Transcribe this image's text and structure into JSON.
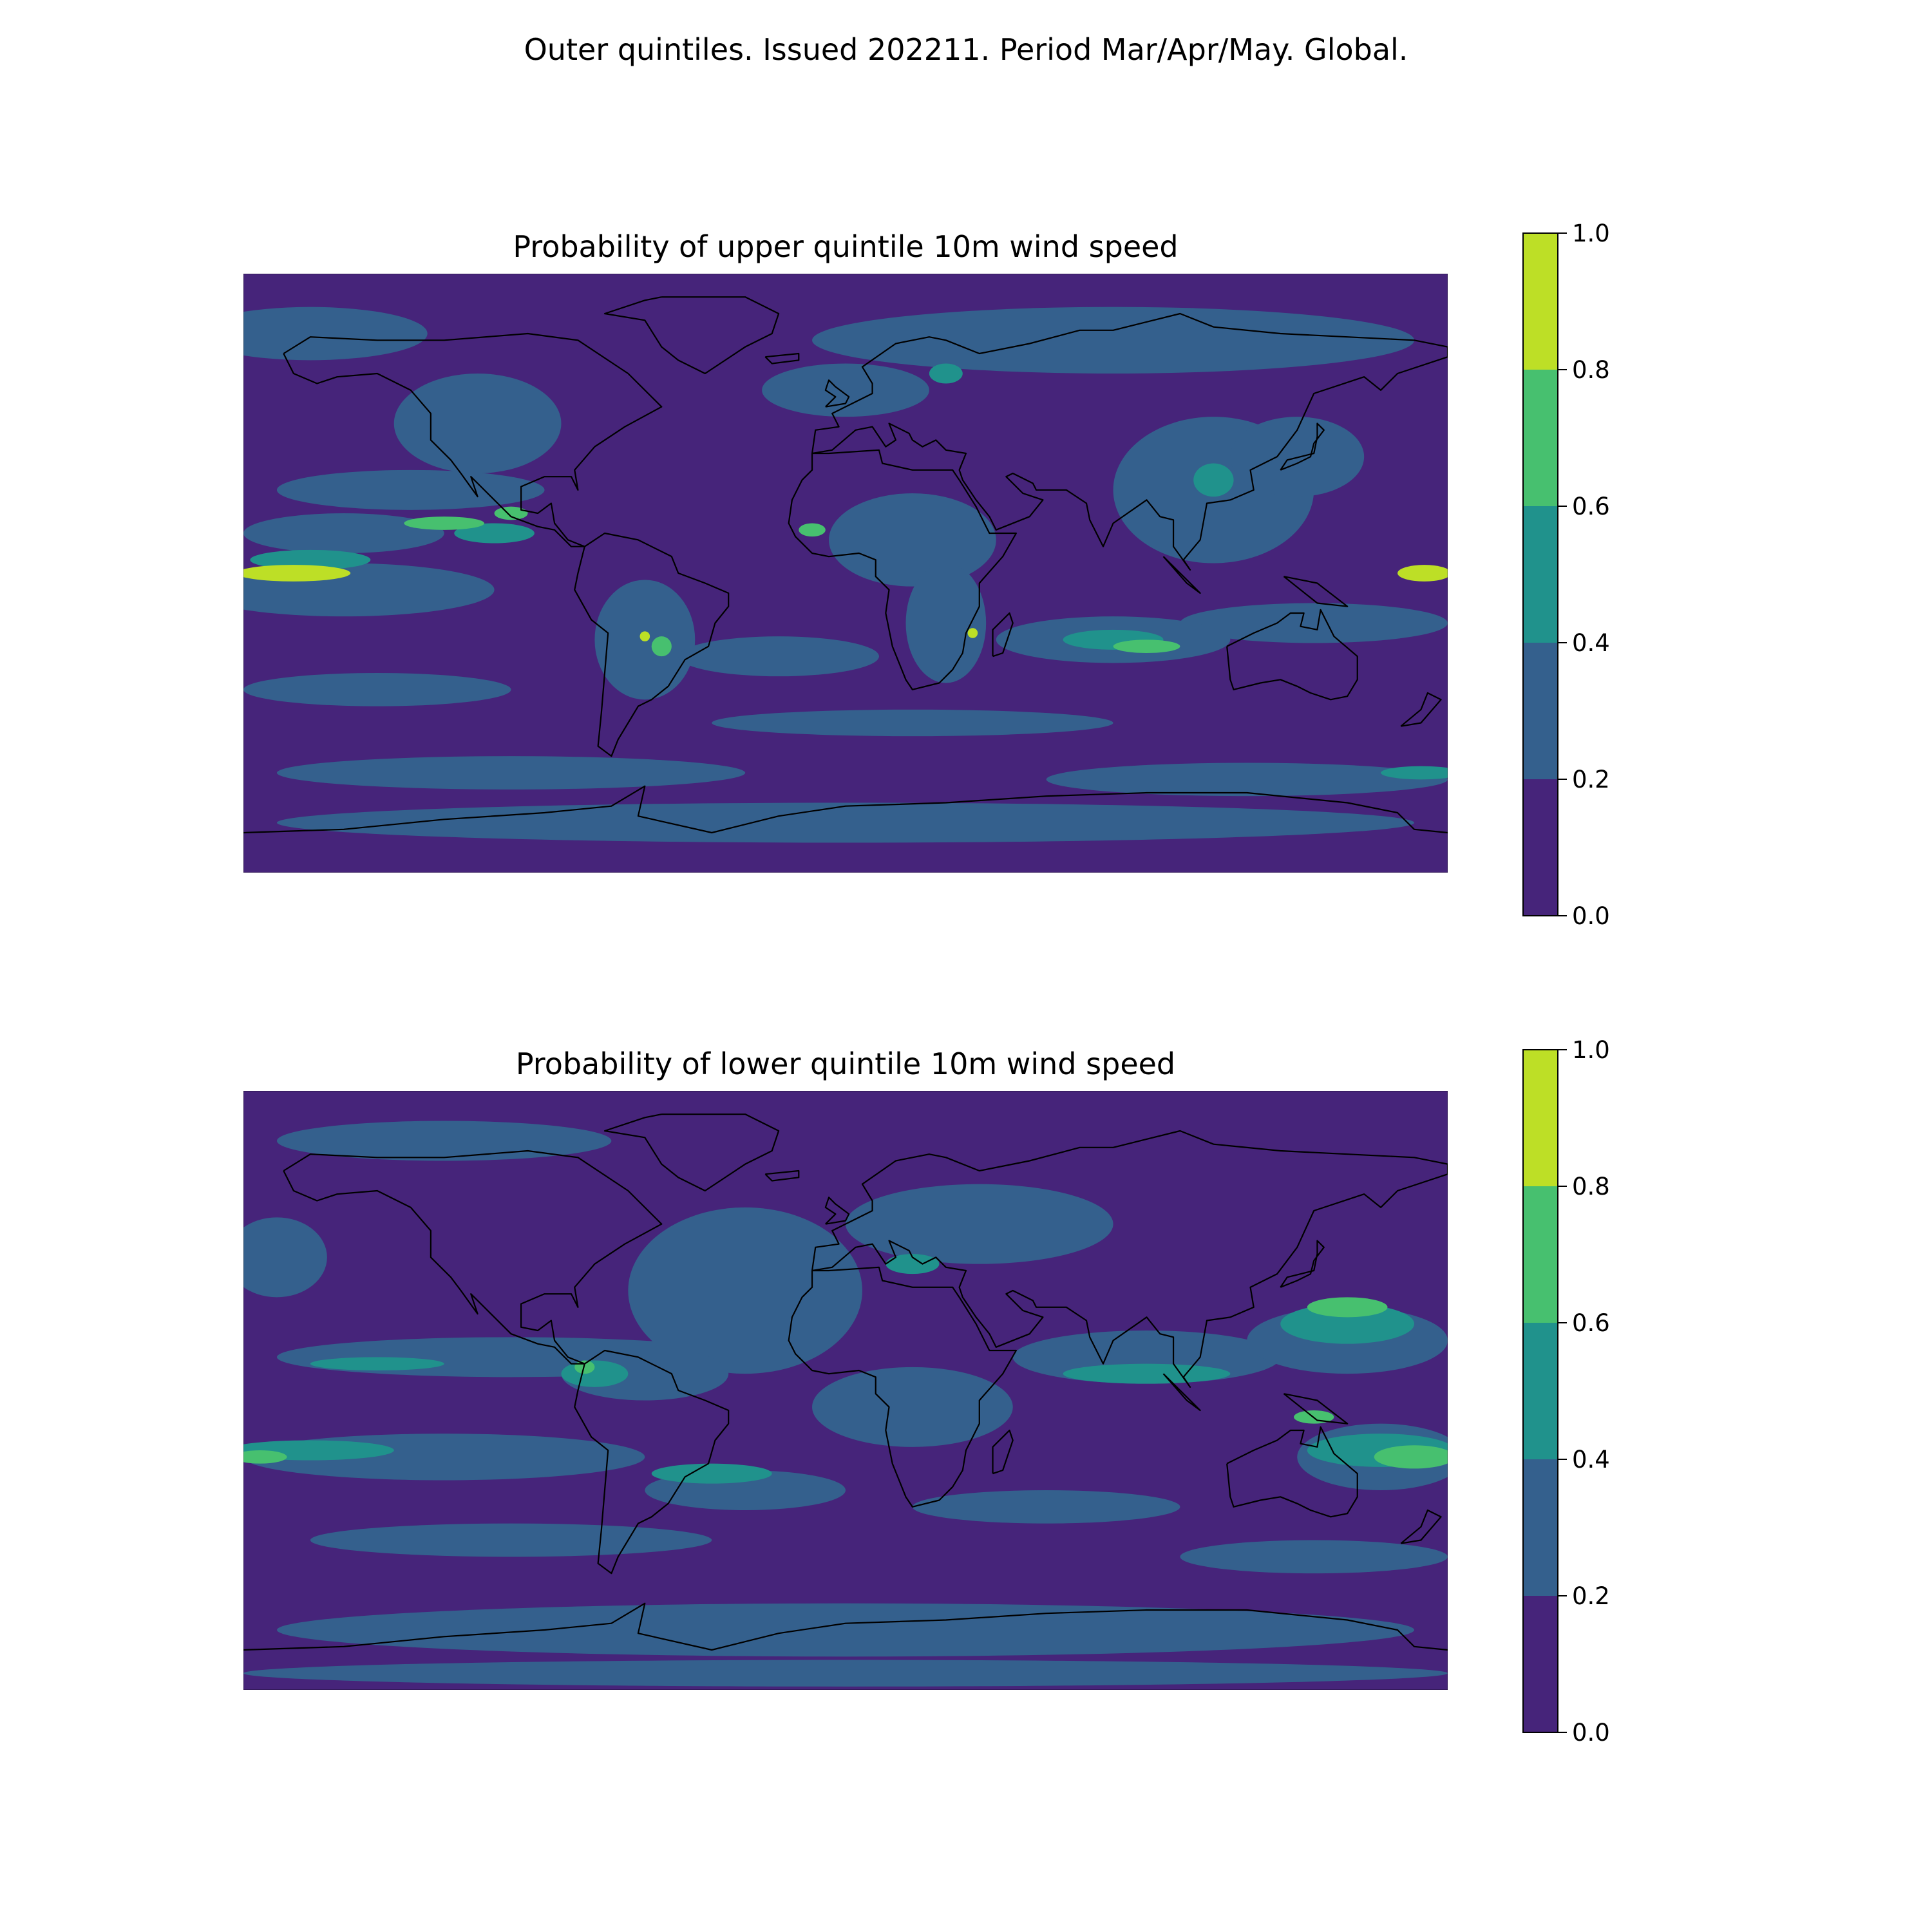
{
  "figure": {
    "suptitle": "Outer quintiles. Issued 202211. Period Mar/Apr/May. Global."
  },
  "colormap": {
    "levels": [
      0.0,
      0.2,
      0.4,
      0.6,
      0.8,
      1.0
    ],
    "colors": [
      "#46247a",
      "#34608d",
      "#20928c",
      "#47c06f",
      "#bddf26"
    ]
  },
  "colorbar": {
    "tick_values": [
      0.0,
      0.2,
      0.4,
      0.6,
      0.8,
      1.0
    ],
    "tick_labels": [
      "0.0",
      "0.2",
      "0.4",
      "0.6",
      "0.8",
      "1.0"
    ]
  },
  "panels": [
    {
      "title": "Probability of upper quintile 10m wind speed",
      "background_class": 0,
      "features": [
        {
          "class": 1,
          "lon": -160,
          "lat": 72,
          "rlon": 35,
          "rlat": 8
        },
        {
          "class": 1,
          "lon": 80,
          "lat": 70,
          "rlon": 90,
          "rlat": 10
        },
        {
          "class": 1,
          "lon": -110,
          "lat": 45,
          "rlon": 25,
          "rlat": 15
        },
        {
          "class": 1,
          "lon": 0,
          "lat": 55,
          "rlon": 25,
          "rlat": 8
        },
        {
          "class": 1,
          "lon": -130,
          "lat": 25,
          "rlon": 40,
          "rlat": 6
        },
        {
          "class": 1,
          "lon": -150,
          "lat": 12,
          "rlon": 30,
          "rlat": 6
        },
        {
          "class": 1,
          "lon": 20,
          "lat": 10,
          "rlon": 25,
          "rlat": 14
        },
        {
          "class": 1,
          "lon": 30,
          "lat": -15,
          "rlon": 12,
          "rlat": 18
        },
        {
          "class": 1,
          "lon": 110,
          "lat": 25,
          "rlon": 30,
          "rlat": 22
        },
        {
          "class": 1,
          "lon": 135,
          "lat": 35,
          "rlon": 20,
          "rlat": 12
        },
        {
          "class": 1,
          "lon": -60,
          "lat": -20,
          "rlon": 15,
          "rlat": 18
        },
        {
          "class": 1,
          "lon": -150,
          "lat": -5,
          "rlon": 45,
          "rlat": 8
        },
        {
          "class": 1,
          "lon": 140,
          "lat": -15,
          "rlon": 40,
          "rlat": 6
        },
        {
          "class": 1,
          "lon": 80,
          "lat": -20,
          "rlon": 35,
          "rlat": 7
        },
        {
          "class": 1,
          "lon": -20,
          "lat": -25,
          "rlon": 30,
          "rlat": 6
        },
        {
          "class": 1,
          "lon": -140,
          "lat": -35,
          "rlon": 40,
          "rlat": 5
        },
        {
          "class": 1,
          "lon": 20,
          "lat": -45,
          "rlon": 60,
          "rlat": 4
        },
        {
          "class": 1,
          "lon": -100,
          "lat": -60,
          "rlon": 70,
          "rlat": 5
        },
        {
          "class": 1,
          "lon": 120,
          "lat": -62,
          "rlon": 60,
          "rlat": 5
        },
        {
          "class": 1,
          "lon": 0,
          "lat": -75,
          "rlon": 170,
          "rlat": 6
        },
        {
          "class": 2,
          "lon": -105,
          "lat": 12,
          "rlon": 12,
          "rlat": 3
        },
        {
          "class": 2,
          "lon": 80,
          "lat": -20,
          "rlon": 15,
          "rlat": 3
        },
        {
          "class": 2,
          "lon": -160,
          "lat": 4,
          "rlon": 18,
          "rlat": 3
        },
        {
          "class": 2,
          "lon": 30,
          "lat": 60,
          "rlon": 5,
          "rlat": 3
        },
        {
          "class": 2,
          "lon": 110,
          "lat": 28,
          "rlon": 6,
          "rlat": 5
        },
        {
          "class": 2,
          "lon": 172,
          "lat": -60,
          "rlon": 12,
          "rlat": 2
        },
        {
          "class": 3,
          "lon": -120,
          "lat": 15,
          "rlon": 12,
          "rlat": 2
        },
        {
          "class": 3,
          "lon": 90,
          "lat": -22,
          "rlon": 10,
          "rlat": 2
        },
        {
          "class": 3,
          "lon": -55,
          "lat": -22,
          "rlon": 3,
          "rlat": 3
        },
        {
          "class": 3,
          "lon": -100,
          "lat": 18,
          "rlon": 5,
          "rlat": 2
        },
        {
          "class": 3,
          "lon": -10,
          "lat": 13,
          "rlon": 4,
          "rlat": 2
        },
        {
          "class": 4,
          "lon": -165,
          "lat": 0,
          "rlon": 17,
          "rlat": 2.5
        },
        {
          "class": 4,
          "lon": 173,
          "lat": 0,
          "rlon": 8,
          "rlat": 2.5
        },
        {
          "class": 4,
          "lon": -60,
          "lat": -19,
          "rlon": 1.5,
          "rlat": 1.5
        },
        {
          "class": 4,
          "lon": 38,
          "lat": -18,
          "rlon": 1.5,
          "rlat": 1.5
        }
      ]
    },
    {
      "title": "Probability of lower quintile 10m wind speed",
      "background_class": 0,
      "features": [
        {
          "class": 1,
          "lon": -30,
          "lat": 30,
          "rlon": 35,
          "rlat": 25
        },
        {
          "class": 1,
          "lon": -120,
          "lat": 75,
          "rlon": 50,
          "rlat": 6
        },
        {
          "class": 1,
          "lon": 40,
          "lat": 50,
          "rlon": 40,
          "rlat": 12
        },
        {
          "class": 1,
          "lon": -100,
          "lat": 10,
          "rlon": 70,
          "rlat": 6
        },
        {
          "class": 1,
          "lon": -60,
          "lat": 5,
          "rlon": 25,
          "rlat": 8
        },
        {
          "class": 1,
          "lon": 20,
          "lat": -5,
          "rlon": 30,
          "rlat": 12
        },
        {
          "class": 1,
          "lon": 90,
          "lat": 10,
          "rlon": 40,
          "rlat": 8
        },
        {
          "class": 1,
          "lon": 150,
          "lat": 15,
          "rlon": 30,
          "rlat": 10
        },
        {
          "class": 1,
          "lon": -170,
          "lat": 40,
          "rlon": 15,
          "rlat": 12
        },
        {
          "class": 1,
          "lon": 160,
          "lat": -20,
          "rlon": 25,
          "rlat": 10
        },
        {
          "class": 1,
          "lon": -120,
          "lat": -20,
          "rlon": 60,
          "rlat": 7
        },
        {
          "class": 1,
          "lon": -30,
          "lat": -30,
          "rlon": 30,
          "rlat": 6
        },
        {
          "class": 1,
          "lon": 60,
          "lat": -35,
          "rlon": 40,
          "rlat": 5
        },
        {
          "class": 1,
          "lon": -100,
          "lat": -45,
          "rlon": 60,
          "rlat": 5
        },
        {
          "class": 1,
          "lon": 140,
          "lat": -50,
          "rlon": 40,
          "rlat": 5
        },
        {
          "class": 1,
          "lon": 0,
          "lat": -72,
          "rlon": 170,
          "rlat": 8
        },
        {
          "class": 1,
          "lon": 0,
          "lat": -85,
          "rlon": 180,
          "rlat": 4
        },
        {
          "class": 2,
          "lon": 150,
          "lat": 20,
          "rlon": 20,
          "rlat": 6
        },
        {
          "class": 2,
          "lon": 160,
          "lat": -18,
          "rlon": 22,
          "rlat": 5
        },
        {
          "class": 2,
          "lon": -160,
          "lat": -18,
          "rlon": 25,
          "rlat": 3
        },
        {
          "class": 2,
          "lon": -40,
          "lat": -25,
          "rlon": 18,
          "rlat": 3
        },
        {
          "class": 2,
          "lon": 90,
          "lat": 5,
          "rlon": 25,
          "rlat": 3
        },
        {
          "class": 2,
          "lon": -75,
          "lat": 5,
          "rlon": 10,
          "rlat": 4
        },
        {
          "class": 2,
          "lon": -140,
          "lat": 8,
          "rlon": 20,
          "rlat": 2
        },
        {
          "class": 2,
          "lon": 20,
          "lat": 38,
          "rlon": 8,
          "rlat": 3
        },
        {
          "class": 3,
          "lon": 170,
          "lat": -20,
          "rlon": 12,
          "rlat": 3.5
        },
        {
          "class": 3,
          "lon": 150,
          "lat": 25,
          "rlon": 12,
          "rlat": 3
        },
        {
          "class": 3,
          "lon": -175,
          "lat": -20,
          "rlon": 8,
          "rlat": 2
        },
        {
          "class": 3,
          "lon": -78,
          "lat": 7,
          "rlon": 3,
          "rlat": 2
        },
        {
          "class": 3,
          "lon": 140,
          "lat": -8,
          "rlon": 6,
          "rlat": 2
        }
      ]
    }
  ]
}
